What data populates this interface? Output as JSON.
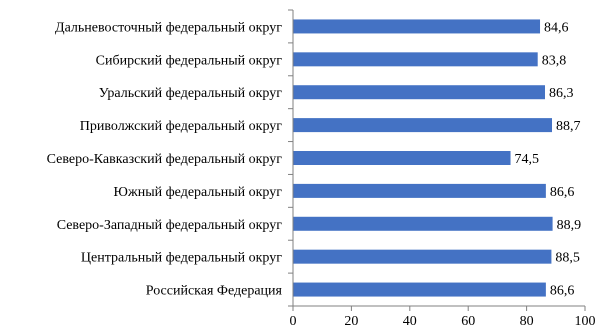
{
  "chart_data": {
    "type": "bar",
    "orientation": "horizontal",
    "categories": [
      "Дальневосточный федеральный округ",
      "Сибирский федеральный округ",
      "Уральский федеральный округ",
      "Приволжский федеральный округ",
      "Северо-Кавказский федеральный округ",
      "Южный федеральный округ",
      "Северо-Западный федеральный округ",
      "Центральный федеральный округ",
      "Российская Федерация"
    ],
    "values": [
      84.6,
      83.8,
      86.3,
      88.7,
      74.5,
      86.6,
      88.9,
      88.5,
      86.6
    ],
    "data_labels": [
      "84,6",
      "83,8",
      "86,3",
      "88,7",
      "74,5",
      "86,6",
      "88,9",
      "88,5",
      "86,6"
    ],
    "xlim": [
      0,
      100
    ],
    "xticks": [
      "0",
      "20",
      "40",
      "60",
      "80",
      "100"
    ],
    "title": "",
    "xlabel": "",
    "ylabel": "",
    "grid": false,
    "legend": "none",
    "colors": {
      "bar": "#4472C4",
      "axis": "#808080"
    }
  }
}
